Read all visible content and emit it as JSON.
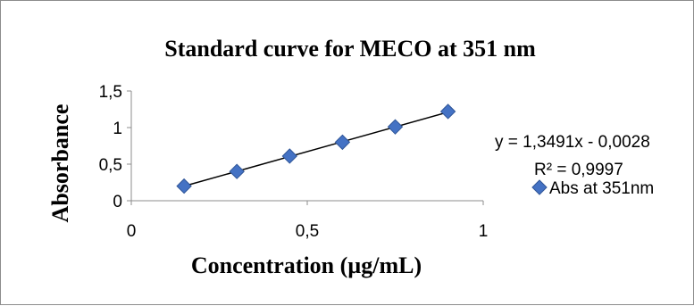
{
  "chart_data": {
    "type": "scatter",
    "title": "Standard curve for MECO at 351 nm",
    "xlabel": "Concentration (µg/mL)",
    "ylabel": "Absorbance",
    "xlim": [
      0,
      1
    ],
    "ylim": [
      0,
      1.5
    ],
    "x_ticks": [
      "0",
      "0,5",
      "1"
    ],
    "y_ticks": [
      "0",
      "0,5",
      "1",
      "1,5"
    ],
    "series": [
      {
        "name": "Abs at 351nm",
        "color": "#4472C4",
        "marker": "diamond",
        "x": [
          0.15,
          0.3,
          0.45,
          0.6,
          0.75,
          0.9
        ],
        "y": [
          0.2,
          0.4,
          0.61,
          0.8,
          1.01,
          1.22
        ]
      }
    ],
    "trendline": {
      "slope": 1.3491,
      "intercept": -0.0028,
      "x_range": [
        0.15,
        0.9
      ],
      "color": "#000000"
    },
    "annotations": {
      "equation": "y = 1,3491x - 0,0028",
      "r_squared": "R² = 0,9997"
    },
    "legend": {
      "label": "Abs at 351nm",
      "placement": "right"
    },
    "grid": false
  }
}
